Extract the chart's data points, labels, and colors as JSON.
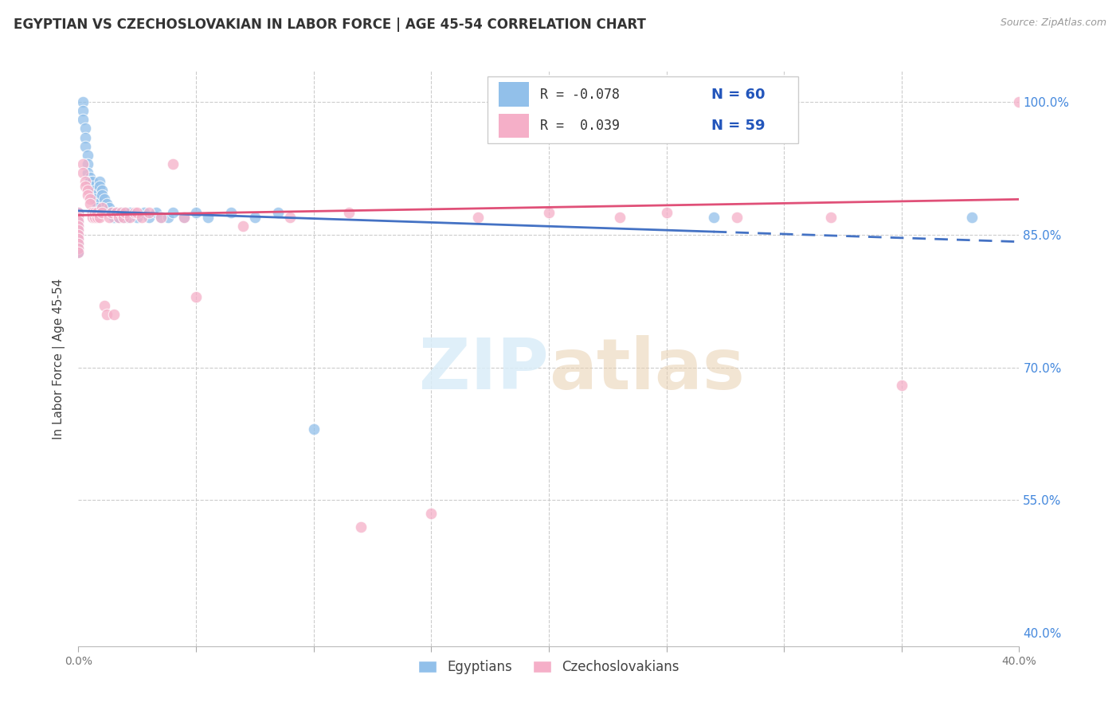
{
  "title": "EGYPTIAN VS CZECHOSLOVAKIAN IN LABOR FORCE | AGE 45-54 CORRELATION CHART",
  "source_text": "Source: ZipAtlas.com",
  "ylabel": "In Labor Force | Age 45-54",
  "xlim": [
    0.0,
    0.4
  ],
  "ylim": [
    0.385,
    1.035
  ],
  "ytick_values": [
    0.4,
    0.55,
    0.7,
    0.85,
    1.0
  ],
  "ytick_labels": [
    "40.0%",
    "55.0%",
    "70.0%",
    "85.0%",
    "100.0%"
  ],
  "xtick_values": [
    0.0,
    0.05,
    0.1,
    0.15,
    0.2,
    0.25,
    0.3,
    0.35,
    0.4
  ],
  "xtick_labels": [
    "0.0%",
    "",
    "",
    "",
    "",
    "",
    "",
    "",
    "40.0%"
  ],
  "legend_R_blue": "-0.078",
  "legend_N_blue": "60",
  "legend_R_pink": "0.039",
  "legend_N_pink": "59",
  "blue_color": "#92c0ea",
  "pink_color": "#f5afc8",
  "trendline_blue": "#4472c4",
  "trendline_pink": "#e05078",
  "watermark_color": "#daedf8",
  "blue_x": [
    0.0,
    0.0,
    0.0,
    0.0,
    0.0,
    0.0,
    0.0,
    0.0,
    0.0,
    0.0,
    0.002,
    0.002,
    0.002,
    0.003,
    0.003,
    0.003,
    0.004,
    0.004,
    0.004,
    0.005,
    0.005,
    0.006,
    0.006,
    0.007,
    0.007,
    0.007,
    0.008,
    0.008,
    0.009,
    0.009,
    0.01,
    0.01,
    0.011,
    0.012,
    0.013,
    0.014,
    0.015,
    0.016,
    0.017,
    0.018,
    0.019,
    0.02,
    0.021,
    0.022,
    0.025,
    0.028,
    0.03,
    0.033,
    0.035,
    0.038,
    0.04,
    0.045,
    0.05,
    0.055,
    0.065,
    0.075,
    0.085,
    0.1,
    0.27,
    0.38
  ],
  "blue_y": [
    0.875,
    0.87,
    0.865,
    0.86,
    0.855,
    0.85,
    0.845,
    0.84,
    0.835,
    0.83,
    1.0,
    0.99,
    0.98,
    0.97,
    0.96,
    0.95,
    0.94,
    0.93,
    0.92,
    0.915,
    0.91,
    0.91,
    0.905,
    0.9,
    0.895,
    0.89,
    0.885,
    0.88,
    0.91,
    0.905,
    0.9,
    0.895,
    0.89,
    0.885,
    0.88,
    0.875,
    0.87,
    0.875,
    0.87,
    0.875,
    0.87,
    0.875,
    0.87,
    0.875,
    0.87,
    0.875,
    0.87,
    0.875,
    0.87,
    0.87,
    0.875,
    0.87,
    0.875,
    0.87,
    0.875,
    0.87,
    0.875,
    0.63,
    0.87,
    0.87
  ],
  "pink_x": [
    0.0,
    0.0,
    0.0,
    0.0,
    0.0,
    0.0,
    0.0,
    0.0,
    0.0,
    0.0,
    0.002,
    0.002,
    0.003,
    0.003,
    0.004,
    0.004,
    0.005,
    0.005,
    0.006,
    0.006,
    0.007,
    0.007,
    0.008,
    0.008,
    0.009,
    0.01,
    0.01,
    0.011,
    0.012,
    0.013,
    0.014,
    0.015,
    0.016,
    0.017,
    0.018,
    0.019,
    0.02,
    0.022,
    0.024,
    0.025,
    0.027,
    0.03,
    0.035,
    0.04,
    0.045,
    0.05,
    0.07,
    0.09,
    0.115,
    0.12,
    0.15,
    0.17,
    0.2,
    0.23,
    0.25,
    0.28,
    0.32,
    0.35,
    0.4
  ],
  "pink_y": [
    0.875,
    0.87,
    0.865,
    0.86,
    0.855,
    0.85,
    0.845,
    0.84,
    0.835,
    0.83,
    0.93,
    0.92,
    0.91,
    0.905,
    0.9,
    0.895,
    0.89,
    0.885,
    0.875,
    0.87,
    0.87,
    0.875,
    0.87,
    0.875,
    0.87,
    0.88,
    0.875,
    0.77,
    0.76,
    0.87,
    0.875,
    0.76,
    0.875,
    0.87,
    0.875,
    0.87,
    0.875,
    0.87,
    0.875,
    0.875,
    0.87,
    0.875,
    0.87,
    0.93,
    0.87,
    0.78,
    0.86,
    0.87,
    0.875,
    0.52,
    0.535,
    0.87,
    0.875,
    0.87,
    0.875,
    0.87,
    0.87,
    0.68,
    1.0
  ]
}
